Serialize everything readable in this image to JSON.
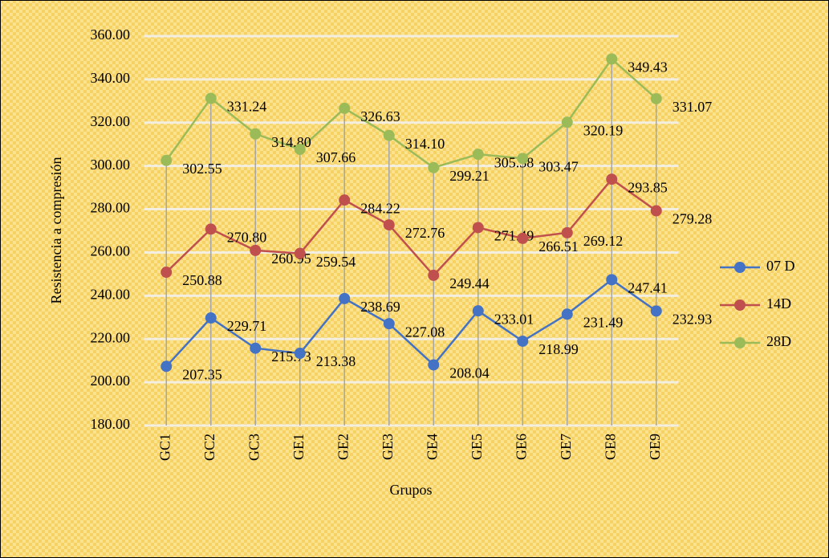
{
  "chart_data": {
    "type": "line",
    "x_label": "Grupos",
    "y_label": "Resistencia a compresión",
    "categories": [
      "GC1",
      "GC2",
      "GC3",
      "GE1",
      "GE2",
      "GE3",
      "GE4",
      "GE5",
      "GE6",
      "GE7",
      "GE8",
      "GE9"
    ],
    "series": [
      {
        "name": "07 D",
        "color": "#4472c4",
        "values": [
          207.35,
          229.71,
          215.73,
          213.38,
          238.69,
          227.08,
          208.04,
          233.01,
          218.99,
          231.49,
          247.41,
          232.93
        ],
        "value_labels": [
          "207.35",
          "229.71",
          "215.73",
          "213.38",
          "238.69",
          "227.08",
          "208.04",
          "233.01",
          "218.99",
          "231.49",
          "247.41",
          "232.93"
        ]
      },
      {
        "name": "14D",
        "color": "#c0504d",
        "values": [
          250.88,
          270.8,
          260.95,
          259.54,
          284.22,
          272.76,
          249.44,
          271.49,
          266.51,
          269.12,
          293.85,
          279.28
        ],
        "value_labels": [
          "250.88",
          "270.80",
          "260.95",
          "259.54",
          "284.22",
          "272.76",
          "249.44",
          "271.49",
          "266.51",
          "269.12",
          "293.85",
          "279.28"
        ]
      },
      {
        "name": "28D",
        "color": "#9bbb59",
        "values": [
          302.55,
          331.24,
          314.8,
          307.66,
          326.63,
          314.1,
          299.21,
          305.38,
          303.47,
          320.19,
          349.43,
          331.07
        ],
        "value_labels": [
          "302.55",
          "331.24",
          "314.80",
          "307.66",
          "326.63",
          "314.10",
          "299.21",
          "305.38",
          "303.47",
          "320.19",
          "349.43",
          "331.07"
        ]
      }
    ],
    "ylim": [
      180,
      360
    ],
    "yticks": [
      {
        "value": 180,
        "label": "180.00"
      },
      {
        "value": 200,
        "label": "200.00"
      },
      {
        "value": 220,
        "label": "220.00"
      },
      {
        "value": 240,
        "label": "240.00"
      },
      {
        "value": 260,
        "label": "260.00"
      },
      {
        "value": 280,
        "label": "280.00"
      },
      {
        "value": 300,
        "label": "300.00"
      },
      {
        "value": 320,
        "label": "320.00"
      },
      {
        "value": 340,
        "label": "340.00"
      },
      {
        "value": 360,
        "label": "360.00"
      }
    ],
    "grid": true,
    "legend": "right"
  }
}
